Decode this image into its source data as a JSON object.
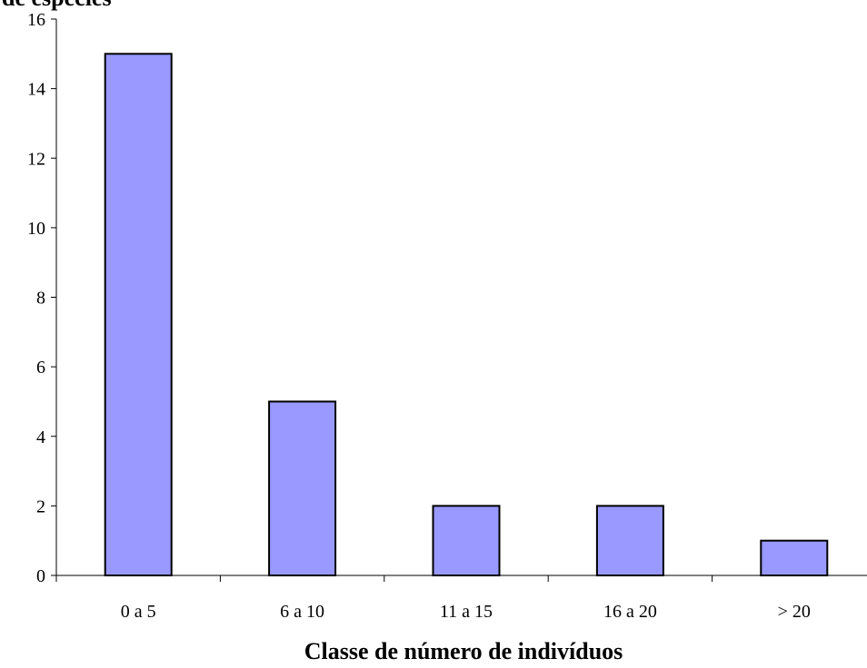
{
  "chart_data": {
    "type": "bar",
    "title": "",
    "ylabel_fragment": "de espécies",
    "xlabel": "Classe de número de indivíduos",
    "categories": [
      "0 a 5",
      "6 a 10",
      "11 a 15",
      "16 a 20",
      "> 20"
    ],
    "values": [
      15,
      5,
      2,
      2,
      1
    ],
    "ylim": [
      0,
      16
    ],
    "yticks": [
      0,
      2,
      4,
      6,
      8,
      10,
      12,
      14,
      16
    ],
    "grid": false,
    "legend": "none",
    "bar_color": "#9999ff",
    "bar_edge_color": "#000000"
  }
}
